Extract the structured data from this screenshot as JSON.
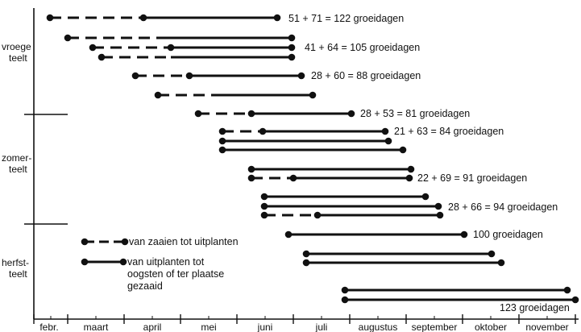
{
  "months": [
    "febr.",
    "maart",
    "april",
    "mei",
    "juni",
    "juli",
    "augustus",
    "september",
    "oktober",
    "november"
  ],
  "groups": [
    {
      "label_line1": "vroege",
      "label_line2": "teelt"
    },
    {
      "label_line1": "zomer-",
      "label_line2": "teelt"
    },
    {
      "label_line1": "herfst-",
      "label_line2": "teelt"
    }
  ],
  "legend": {
    "sowing_label": "van zaaien tot uitplanten",
    "planting_label_line1": "van uitplanten tot",
    "planting_label_line2": "oogsten of ter plaatse",
    "planting_label_line3": "gezaaid"
  },
  "annotations": [
    "51 + 71 = 122 groeidagen",
    "41 + 64 = 105 groeidagen",
    "28 + 60 = 88 groeidagen",
    "28 + 53 = 81 groeidagen",
    "21 + 63 = 84 groeidagen",
    "22 + 69 = 91 groeidagen",
    "28 + 66 = 94 groeidagen",
    "100 groeidagen",
    "123 groeidagen"
  ],
  "colors": {
    "ink": "#111111"
  }
}
